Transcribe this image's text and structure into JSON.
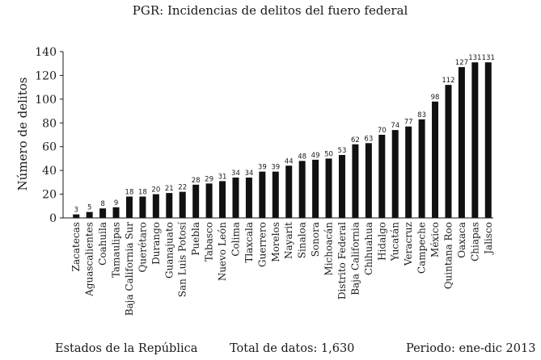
{
  "chart_data": {
    "type": "bar",
    "title": "PGR: Incidencias de delitos del fuero federal",
    "ylabel": "Número de delitos",
    "xlabel": "",
    "ylim": [
      0,
      140
    ],
    "yticks": [
      0,
      20,
      40,
      60,
      80,
      100,
      120,
      140
    ],
    "grid": false,
    "categories": [
      "Zacatecas",
      "Aguascalientes",
      "Coahuila",
      "Tamaulipas",
      "Baja California Sur",
      "Querétaro",
      "Durango",
      "Guanajuato",
      "San Luis Potosí",
      "Puebla",
      "Tabasco",
      "Nuevo León",
      "Colima",
      "Tlaxcala",
      "Guerrero",
      "Morelos",
      "Nayarit",
      "Sinaloa",
      "Sonora",
      "Michoacán",
      "Distrito Federal",
      "Baja California",
      "Chihuahua",
      "Hidalgo",
      "Yucatán",
      "Veracruz",
      "Campeche",
      "México",
      "Quintana Roo",
      "Oaxaca",
      "Chiapas",
      "Jalisco"
    ],
    "values": [
      3,
      5,
      8,
      9,
      18,
      18,
      20,
      21,
      22,
      28,
      29,
      31,
      34,
      34,
      39,
      39,
      44,
      48,
      49,
      50,
      53,
      62,
      63,
      70,
      74,
      77,
      83,
      98,
      112,
      127,
      131,
      131
    ],
    "bar_color": "#111111"
  },
  "footer": {
    "left": "Estados de la República",
    "center": "Total de datos: 1,630",
    "right": "Periodo: ene-dic 2013"
  }
}
